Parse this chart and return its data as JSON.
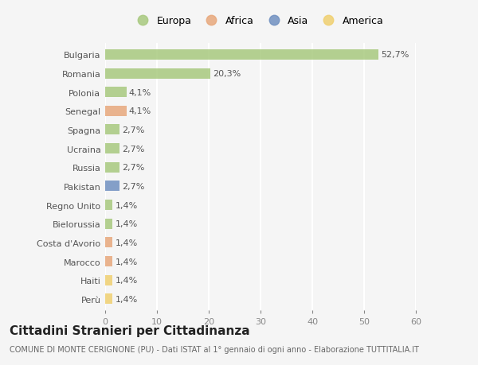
{
  "categories": [
    "Bulgaria",
    "Romania",
    "Polonia",
    "Senegal",
    "Spagna",
    "Ucraina",
    "Russia",
    "Pakistan",
    "Regno Unito",
    "Bielorussia",
    "Costa d'Avorio",
    "Marocco",
    "Haiti",
    "Perù"
  ],
  "values": [
    52.7,
    20.3,
    4.1,
    4.1,
    2.7,
    2.7,
    2.7,
    2.7,
    1.4,
    1.4,
    1.4,
    1.4,
    1.4,
    1.4
  ],
  "labels": [
    "52,7%",
    "20,3%",
    "4,1%",
    "4,1%",
    "2,7%",
    "2,7%",
    "2,7%",
    "2,7%",
    "1,4%",
    "1,4%",
    "1,4%",
    "1,4%",
    "1,4%",
    "1,4%"
  ],
  "continents": [
    "Europa",
    "Europa",
    "Europa",
    "Africa",
    "Europa",
    "Europa",
    "Europa",
    "Asia",
    "Europa",
    "Europa",
    "Africa",
    "Africa",
    "America",
    "America"
  ],
  "continent_colors": {
    "Europa": "#a8c97f",
    "Africa": "#e8a87c",
    "Asia": "#7090c0",
    "America": "#f0d070"
  },
  "legend_order": [
    "Europa",
    "Africa",
    "Asia",
    "America"
  ],
  "xlim": [
    0,
    60
  ],
  "xticks": [
    0,
    10,
    20,
    30,
    40,
    50,
    60
  ],
  "title": "Cittadini Stranieri per Cittadinanza",
  "subtitle": "COMUNE DI MONTE CERIGNONE (PU) - Dati ISTAT al 1° gennaio di ogni anno - Elaborazione TUTTITALIA.IT",
  "background_color": "#f5f5f5",
  "grid_color": "#ffffff",
  "bar_height": 0.55,
  "title_fontsize": 11,
  "subtitle_fontsize": 7,
  "label_fontsize": 8,
  "tick_fontsize": 8,
  "legend_fontsize": 9
}
